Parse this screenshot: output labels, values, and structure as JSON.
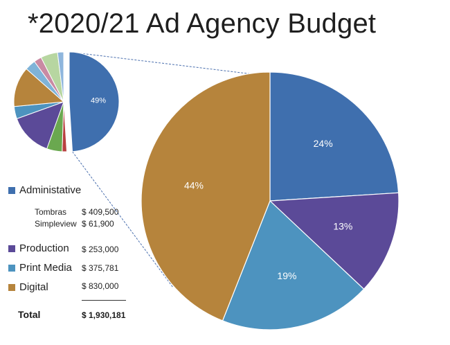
{
  "title": "*2020/21 Ad Agency Budget",
  "colors": {
    "administrative": "#3f6fae",
    "production": "#5b4a98",
    "print_media": "#4d93bf",
    "digital": "#b6843c"
  },
  "chart_data": [
    {
      "type": "pie",
      "name": "overview",
      "slices": [
        {
          "value": 49,
          "label": "49%",
          "color": "#3f6fae"
        },
        {
          "value": 1.5,
          "label": "",
          "color": "#b84040"
        },
        {
          "value": 5,
          "label": "",
          "color": "#6aa84f"
        },
        {
          "value": 14,
          "label": "",
          "color": "#5b4a98"
        },
        {
          "value": 4,
          "label": "",
          "color": "#4d93bf"
        },
        {
          "value": 13,
          "label": "",
          "color": "#b6843c"
        },
        {
          "value": 3.5,
          "label": "",
          "color": "#7fb3d8"
        },
        {
          "value": 2.5,
          "label": "",
          "color": "#c98aa3"
        },
        {
          "value": 5.5,
          "label": "",
          "color": "#b7d6a1"
        },
        {
          "value": 2,
          "label": "",
          "color": "#8fb6dd"
        }
      ]
    },
    {
      "type": "pie",
      "name": "breakdown",
      "slices": [
        {
          "value": 24,
          "label": "24%",
          "color": "#3f6fae"
        },
        {
          "value": 13,
          "label": "13%",
          "color": "#5b4a98"
        },
        {
          "value": 19,
          "label": "19%",
          "color": "#4d93bf"
        },
        {
          "value": 44,
          "label": "44%",
          "color": "#b6843c"
        }
      ]
    }
  ],
  "legend": {
    "administrative": {
      "label": "Administative",
      "sub": [
        {
          "name": "Tombras",
          "amount": "$  409,500"
        },
        {
          "name": "Simpleview",
          "amount": "$    61,900"
        }
      ]
    },
    "production": {
      "label": "Production",
      "amount": "$ 253,000"
    },
    "print_media": {
      "label": "Print Media",
      "amount": "$ 375,781"
    },
    "digital": {
      "label": "Digital",
      "amount": "$ 830,000"
    }
  },
  "total": {
    "label": "Total",
    "value": "$ 1,930,181"
  }
}
